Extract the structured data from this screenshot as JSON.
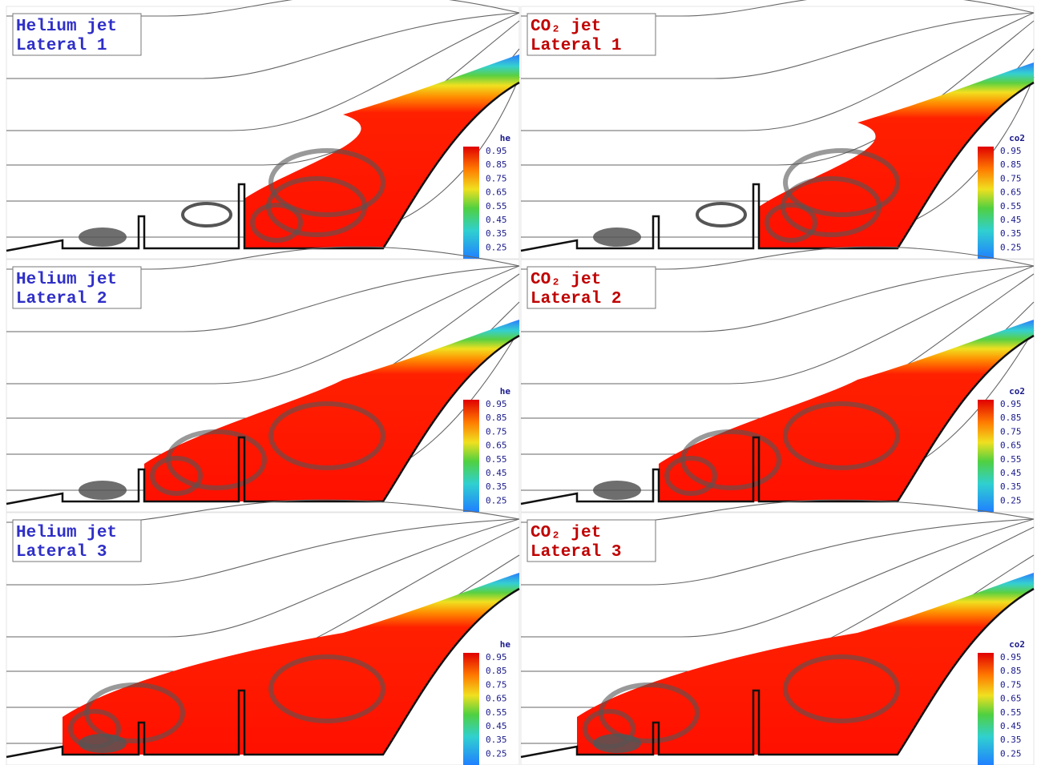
{
  "panels": [
    {
      "title": [
        "Helium jet",
        "Lateral 1"
      ],
      "colorbar": {
        "title": "he",
        "ticks": [
          0.95,
          0.85,
          0.75,
          0.65,
          0.55,
          0.45,
          0.35,
          0.25
        ]
      }
    },
    {
      "title": [
        "CO₂ jet",
        "Lateral 1"
      ],
      "colorbar": {
        "title": "co2",
        "ticks": [
          0.95,
          0.85,
          0.75,
          0.65,
          0.55,
          0.45,
          0.35,
          0.25
        ]
      }
    },
    {
      "title": [
        "Helium jet",
        "Lateral 2"
      ],
      "colorbar": {
        "title": "he",
        "ticks": [
          0.95,
          0.85,
          0.75,
          0.65,
          0.55,
          0.45,
          0.35,
          0.25
        ]
      }
    },
    {
      "title": [
        "CO₂ jet",
        "Lateral 2"
      ],
      "colorbar": {
        "title": "co2",
        "ticks": [
          0.95,
          0.85,
          0.75,
          0.65,
          0.55,
          0.45,
          0.35,
          0.25
        ]
      }
    },
    {
      "title": [
        "Helium jet",
        "Lateral 3"
      ],
      "colorbar": {
        "title": "he",
        "ticks": [
          0.95,
          0.85,
          0.75,
          0.65,
          0.55,
          0.45,
          0.35,
          0.25
        ]
      }
    },
    {
      "title": [
        "CO₂ jet",
        "Lateral 3"
      ],
      "colorbar": {
        "title": "co2",
        "ticks": [
          0.95,
          0.85,
          0.75,
          0.65,
          0.55,
          0.45,
          0.35,
          0.25
        ]
      }
    }
  ]
}
